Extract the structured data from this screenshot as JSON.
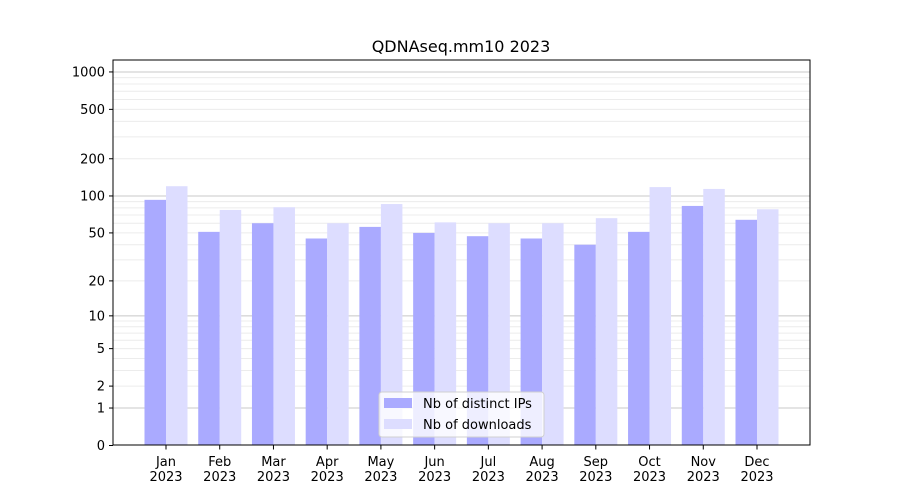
{
  "chart_data": {
    "type": "bar",
    "title": "QDNAseq.mm10 2023",
    "xlabel": "",
    "ylabel": "",
    "yscale": "symlog",
    "ylim": [
      0,
      1250
    ],
    "yticks": [
      0,
      1,
      2,
      5,
      10,
      20,
      50,
      100,
      200,
      500,
      1000
    ],
    "categories": [
      "Jan\n2023",
      "Feb\n2023",
      "Mar\n2023",
      "Apr\n2023",
      "May\n2023",
      "Jun\n2023",
      "Jul\n2023",
      "Aug\n2023",
      "Sep\n2023",
      "Oct\n2023",
      "Nov\n2023",
      "Dec\n2023"
    ],
    "series": [
      {
        "name": "Nb of distinct IPs",
        "color": "#aaaaff",
        "values": [
          93,
          51,
          60,
          45,
          56,
          50,
          47,
          45,
          40,
          51,
          83,
          64
        ]
      },
      {
        "name": "Nb of downloads",
        "color": "#ddddff",
        "values": [
          120,
          77,
          81,
          60,
          86,
          61,
          60,
          60,
          66,
          118,
          114,
          78
        ]
      }
    ],
    "grid": true,
    "legend": "bottom-center"
  }
}
